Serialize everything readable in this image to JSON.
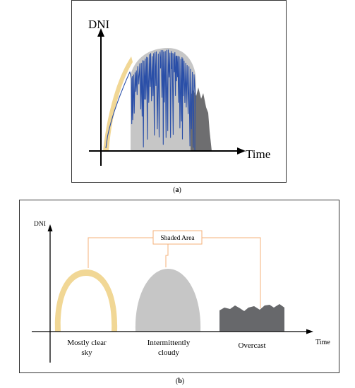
{
  "panel_a": {
    "y_axis_label": "DNI",
    "x_axis_label": "Time",
    "caption": "(a)",
    "caption_letter": "a",
    "colors": {
      "clear_sky": "#f1d795",
      "intermittent": "#c6c6c6",
      "overcast": "#6e6e70",
      "dni_trace": "#2a4fa8"
    }
  },
  "panel_b": {
    "y_axis_label": "DNI",
    "x_axis_label": "Time",
    "callout_label": "Shaded Area",
    "categories": [
      {
        "name": "mostly-clear",
        "line1": "Mostly clear",
        "line2": "sky"
      },
      {
        "name": "intermittently-cloudy",
        "line1": "Intermittently",
        "line2": "cloudy"
      },
      {
        "name": "overcast",
        "line1": "Overcast",
        "line2": ""
      }
    ],
    "caption": "(b)",
    "caption_letter": "b",
    "colors": {
      "clear_sky": "#f1d795",
      "intermittent": "#c6c6c6",
      "overcast": "#67686b",
      "callout": "#f4b07a"
    }
  }
}
